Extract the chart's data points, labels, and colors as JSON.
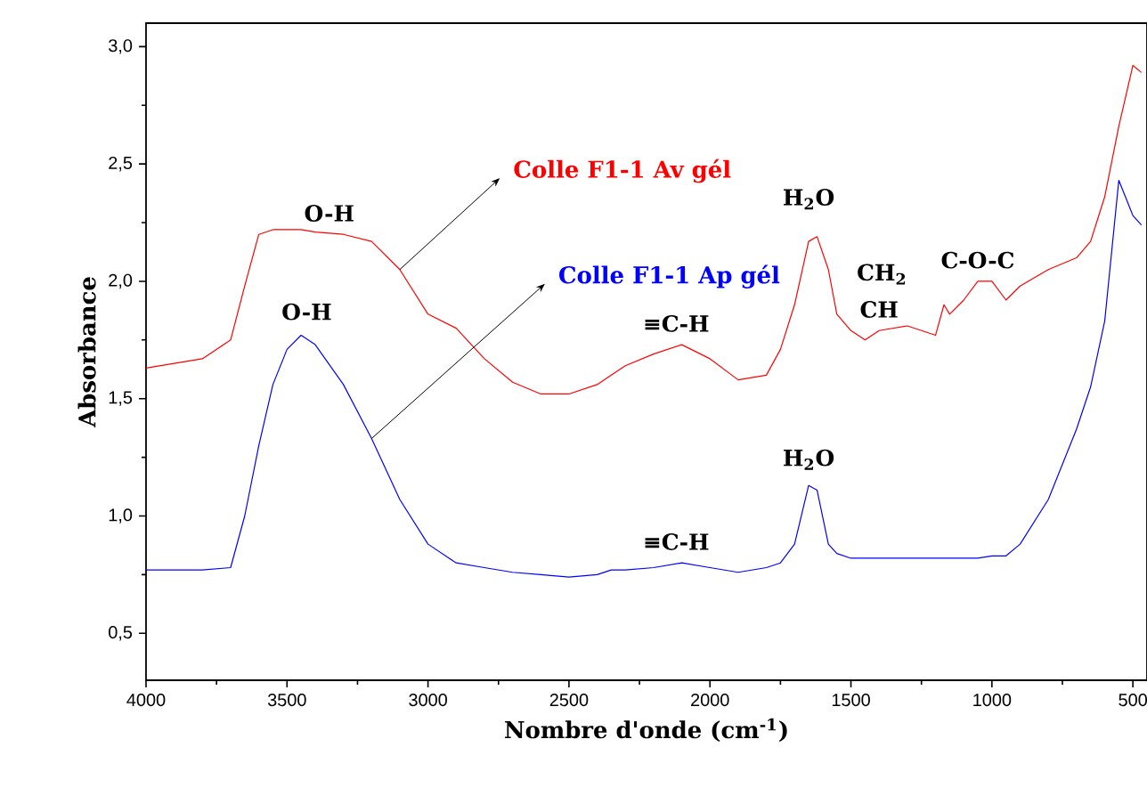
{
  "chart_data": {
    "type": "line",
    "xlabel": "Nombre d'onde (cm$^{-1}$)",
    "ylabel": "Absorbance",
    "x": [
      4000,
      3800,
      3700,
      3650,
      3600,
      3550,
      3500,
      3450,
      3400,
      3300,
      3200,
      3100,
      3000,
      2900,
      2800,
      2700,
      2600,
      2500,
      2400,
      2350,
      2300,
      2200,
      2100,
      2000,
      1900,
      1800,
      1750,
      1700,
      1650,
      1620,
      1580,
      1550,
      1500,
      1450,
      1400,
      1300,
      1200,
      1170,
      1150,
      1100,
      1050,
      1000,
      950,
      900,
      800,
      700,
      650,
      600,
      550,
      500,
      470
    ],
    "series": [
      {
        "name": "Colle F1-1 Av gél",
        "color": "#ff0000",
        "values": [
          1.63,
          1.67,
          1.75,
          1.98,
          2.2,
          2.22,
          2.22,
          2.22,
          2.21,
          2.2,
          2.17,
          2.05,
          1.86,
          1.8,
          1.67,
          1.57,
          1.52,
          1.52,
          1.56,
          1.6,
          1.64,
          1.69,
          1.73,
          1.67,
          1.58,
          1.6,
          1.71,
          1.9,
          2.17,
          2.19,
          2.05,
          1.86,
          1.79,
          1.75,
          1.79,
          1.81,
          1.77,
          1.9,
          1.86,
          1.92,
          2.0,
          2.0,
          1.92,
          1.98,
          2.05,
          2.1,
          2.17,
          2.36,
          2.66,
          2.92,
          2.89
        ]
      },
      {
        "name": "Colle F1-1 Ap gél",
        "color": "#0000ff",
        "values": [
          0.77,
          0.77,
          0.78,
          1.0,
          1.3,
          1.56,
          1.71,
          1.77,
          1.73,
          1.56,
          1.33,
          1.07,
          0.88,
          0.8,
          0.78,
          0.76,
          0.75,
          0.74,
          0.75,
          0.77,
          0.77,
          0.78,
          0.8,
          0.78,
          0.76,
          0.78,
          0.8,
          0.88,
          1.13,
          1.11,
          0.88,
          0.84,
          0.82,
          0.82,
          0.82,
          0.82,
          0.82,
          0.82,
          0.82,
          0.82,
          0.82,
          0.83,
          0.83,
          0.88,
          1.07,
          1.37,
          1.55,
          1.83,
          2.43,
          2.28,
          2.24
        ]
      }
    ],
    "xlim": [
      4000,
      450
    ],
    "ylim": [
      0.3,
      3.1
    ],
    "xticks": [
      4000,
      3500,
      3000,
      2500,
      2000,
      1500,
      1000,
      500
    ],
    "yticks": [
      {
        "value": 0.5,
        "label": "0,5"
      },
      {
        "value": 1.0,
        "label": "1,0"
      },
      {
        "value": 1.5,
        "label": "1,5"
      },
      {
        "value": 2.0,
        "label": "2,0"
      },
      {
        "value": 2.5,
        "label": "2,5"
      },
      {
        "value": 3.0,
        "label": "3,0"
      }
    ],
    "annotations": [
      "O-H",
      "O-H",
      "≡C-H",
      "≡C-H",
      "H$_{2}$O",
      "H$_{2}$O",
      "CH$_{2}$",
      "CH",
      "C-O-C"
    ]
  }
}
